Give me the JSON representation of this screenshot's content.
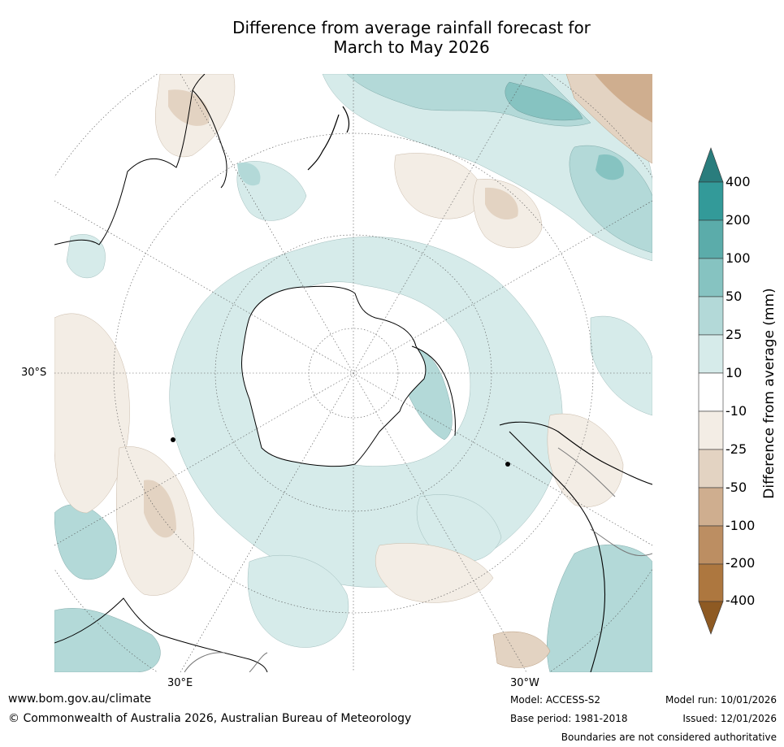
{
  "header": {
    "title_line1": "Difference from average rainfall forecast for",
    "title_line2": "March to May 2026"
  },
  "map": {
    "projection": "south-polar-stereographic",
    "labels": {
      "lat_30s": "30°S",
      "lon_30e": "30°E",
      "lon_30w": "30°W"
    }
  },
  "legend": {
    "title": "Difference from average (mm)",
    "ticks": [
      "400",
      "200",
      "100",
      "50",
      "25",
      "10",
      "-10",
      "-25",
      "-50",
      "-100",
      "-200",
      "-400"
    ],
    "colors": {
      "over": "#2a7d7d",
      "gt200": "#339a99",
      "100_200": "#5bacaa",
      "50_100": "#86c3c1",
      "25_50": "#b3d9d8",
      "10_25": "#d6ebea",
      "neutral": "#ffffff",
      "m25_m10": "#f3ede5",
      "m50_m25": "#e3d3c2",
      "m100_m50": "#cfae8f",
      "m200_m100": "#bc8e62",
      "lt_m200": "#ad773f",
      "under": "#8e5a23"
    }
  },
  "footer": {
    "website": "www.bom.gov.au/climate",
    "copyright": "© Commonwealth of Australia 2026, Australian Bureau of Meteorology",
    "model": "Model: ACCESS-S2",
    "base_period": "Base period: 1981-2018",
    "model_run": "Model run: 10/01/2026",
    "issued": "Issued: 12/01/2026",
    "disclaimer": "Boundaries are not considered authoritative"
  }
}
